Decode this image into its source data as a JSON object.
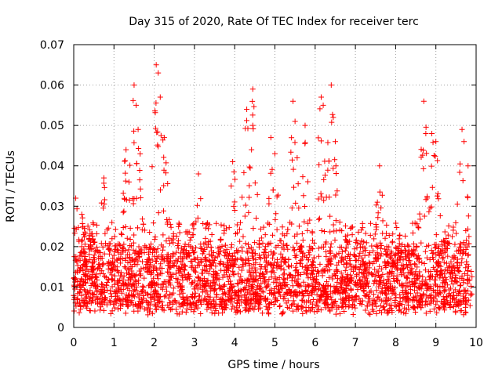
{
  "chart_data": {
    "type": "scatter",
    "title": "Day 315 of 2020, Rate Of TEC Index for receiver terc",
    "xlabel": "GPS time / hours",
    "ylabel": "ROTI / TECUs",
    "xlim": [
      0,
      10
    ],
    "ylim": [
      0,
      0.07
    ],
    "x_ticks": [
      "0",
      "1",
      "2",
      "3",
      "4",
      "5",
      "6",
      "7",
      "8",
      "9",
      "10"
    ],
    "y_ticks": [
      "0",
      "0.01",
      "0.02",
      "0.03",
      "0.04",
      "0.05",
      "0.06",
      "0.07"
    ],
    "grid": true,
    "legend": "none",
    "marker": "plus",
    "color": "#ff0000",
    "x_range_observed": [
      0,
      9.9
    ],
    "baseline_band": [
      0.005,
      0.02
    ],
    "peaks": [
      {
        "x": 0.05,
        "y": 0.032
      },
      {
        "x": 0.2,
        "y": 0.028
      },
      {
        "x": 0.75,
        "y": 0.037
      },
      {
        "x": 1.3,
        "y": 0.044
      },
      {
        "x": 1.5,
        "y": 0.06
      },
      {
        "x": 1.55,
        "y": 0.055
      },
      {
        "x": 1.6,
        "y": 0.049
      },
      {
        "x": 2.05,
        "y": 0.065
      },
      {
        "x": 2.1,
        "y": 0.063
      },
      {
        "x": 2.15,
        "y": 0.057
      },
      {
        "x": 2.25,
        "y": 0.047
      },
      {
        "x": 3.1,
        "y": 0.038
      },
      {
        "x": 3.95,
        "y": 0.041
      },
      {
        "x": 4.3,
        "y": 0.054
      },
      {
        "x": 4.45,
        "y": 0.059
      },
      {
        "x": 4.45,
        "y": 0.05
      },
      {
        "x": 4.9,
        "y": 0.047
      },
      {
        "x": 5.0,
        "y": 0.043
      },
      {
        "x": 5.45,
        "y": 0.056
      },
      {
        "x": 5.5,
        "y": 0.051
      },
      {
        "x": 5.75,
        "y": 0.05
      },
      {
        "x": 6.15,
        "y": 0.057
      },
      {
        "x": 6.2,
        "y": 0.055
      },
      {
        "x": 6.4,
        "y": 0.06
      },
      {
        "x": 6.45,
        "y": 0.052
      },
      {
        "x": 6.5,
        "y": 0.046
      },
      {
        "x": 7.6,
        "y": 0.04
      },
      {
        "x": 8.7,
        "y": 0.056
      },
      {
        "x": 8.75,
        "y": 0.048
      },
      {
        "x": 8.9,
        "y": 0.048
      },
      {
        "x": 9.0,
        "y": 0.046
      },
      {
        "x": 9.65,
        "y": 0.049
      },
      {
        "x": 9.7,
        "y": 0.046
      },
      {
        "x": 9.8,
        "y": 0.04
      }
    ]
  }
}
